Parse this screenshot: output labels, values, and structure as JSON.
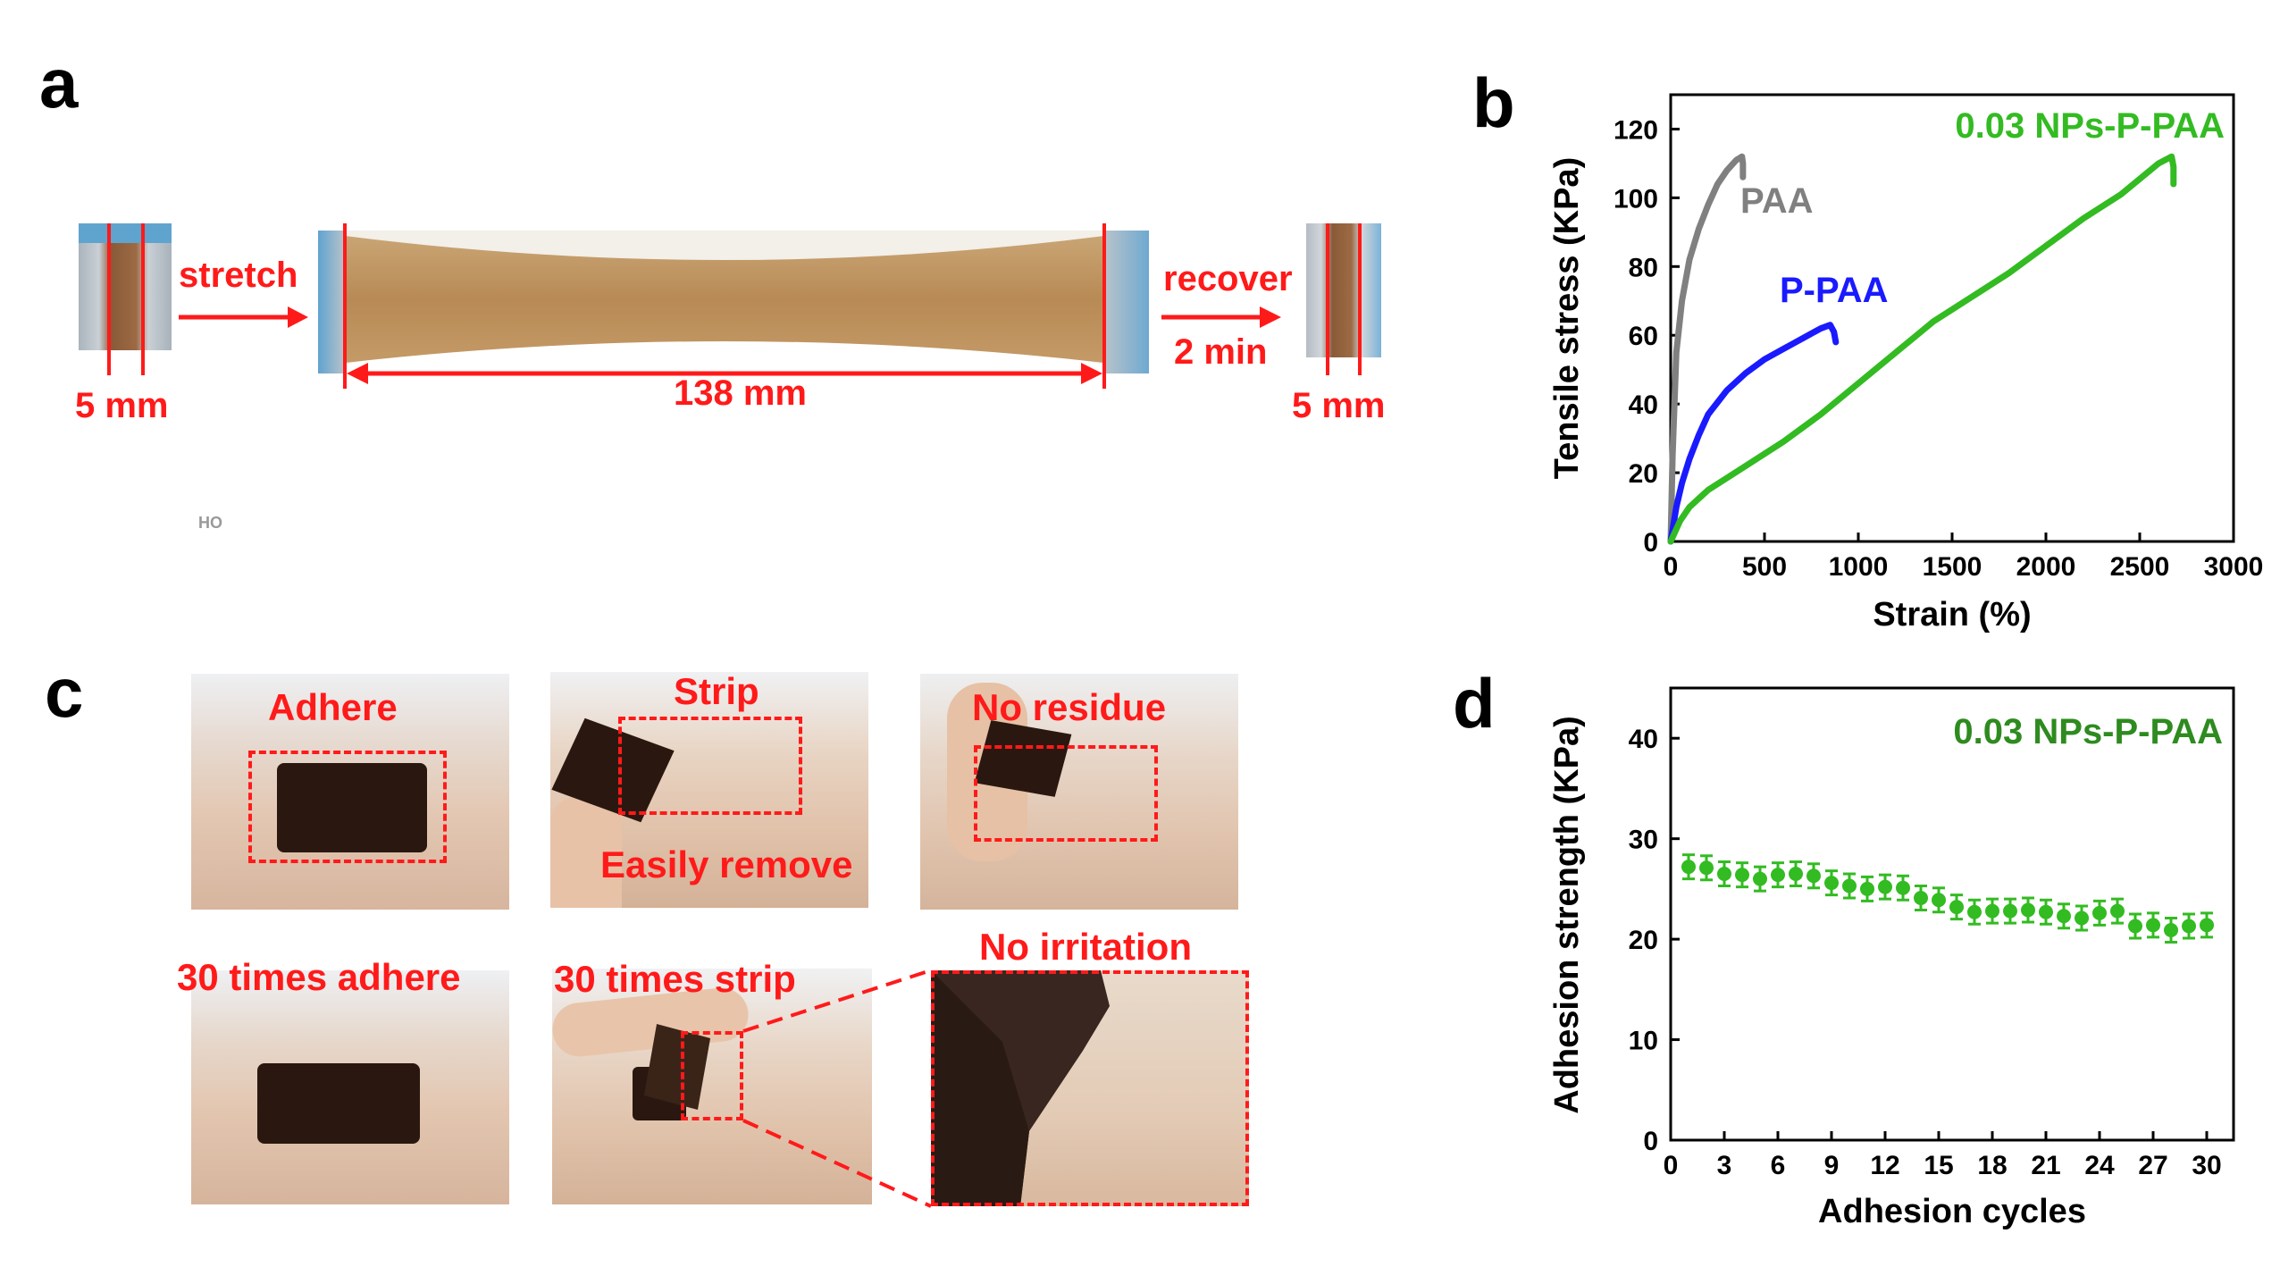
{
  "panels": {
    "a": "a",
    "b": "b",
    "c": "c",
    "d": "d"
  },
  "panel_a": {
    "stretch_label": "stretch",
    "recover_label": "recover",
    "time_label": "2 min",
    "left_width": "5 mm",
    "stretched_width": "138 mm",
    "right_width": "5 mm",
    "watermark": "HO"
  },
  "panel_c": {
    "adhere": "Adhere",
    "strip": "Strip",
    "easily_remove": "Easily remove",
    "no_residue": "No residue",
    "times_adhere": "30 times adhere",
    "times_strip": "30 times strip",
    "no_irritation": "No irritation"
  },
  "colors": {
    "red": "#ff1a1a",
    "gray": "#808080",
    "blue": "#1a1aff",
    "green": "#33bb22",
    "dark_green": "#2e8b1f"
  },
  "chart_data": [
    {
      "type": "line",
      "id": "b",
      "xlabel": "Strain (%)",
      "ylabel": "Tensile stress (KPa)",
      "xlim": [
        0,
        3000
      ],
      "ylim": [
        0,
        130
      ],
      "xticks": [
        0,
        500,
        1000,
        1500,
        2000,
        2500,
        3000
      ],
      "yticks": [
        0,
        20,
        40,
        60,
        80,
        100,
        120
      ],
      "series": [
        {
          "name": "PAA",
          "color": "#808080",
          "x": [
            0,
            10,
            30,
            60,
            100,
            150,
            200,
            250,
            300,
            350,
            380,
            385,
            385
          ],
          "y": [
            0,
            25,
            55,
            70,
            82,
            91,
            98,
            104,
            108,
            111,
            112,
            110,
            106
          ]
        },
        {
          "name": "P-PAA",
          "color": "#1a1aff",
          "x": [
            0,
            30,
            60,
            100,
            150,
            200,
            300,
            400,
            500,
            600,
            700,
            800,
            850,
            870,
            880
          ],
          "y": [
            0,
            10,
            17,
            24,
            31,
            37,
            44,
            49,
            53,
            56,
            59,
            62,
            63,
            61,
            58
          ]
        },
        {
          "name": "0.03 NPs-P-PAA",
          "color": "#33bb22",
          "x": [
            0,
            50,
            100,
            200,
            400,
            600,
            800,
            1000,
            1200,
            1400,
            1600,
            1800,
            2000,
            2200,
            2400,
            2600,
            2670,
            2680,
            2680
          ],
          "y": [
            0,
            6,
            10,
            15,
            22,
            29,
            37,
            46,
            55,
            64,
            71,
            78,
            86,
            94,
            101,
            110,
            112,
            109,
            104
          ]
        }
      ]
    },
    {
      "type": "scatter",
      "id": "d",
      "xlabel": "Adhesion cycles",
      "ylabel": "Adhesion strength (KPa)",
      "legend": "0.03 NPs-P-PAA",
      "xlim": [
        0,
        31.5
      ],
      "ylim": [
        0,
        45
      ],
      "xticks": [
        0,
        3,
        6,
        9,
        12,
        15,
        18,
        21,
        24,
        27,
        30
      ],
      "yticks": [
        0,
        10,
        20,
        30,
        40
      ],
      "x": [
        1,
        2,
        3,
        4,
        5,
        6,
        7,
        8,
        9,
        10,
        11,
        12,
        13,
        14,
        15,
        16,
        17,
        18,
        19,
        20,
        21,
        22,
        23,
        24,
        25,
        26,
        27,
        28,
        29,
        30
      ],
      "y": [
        27.2,
        27.1,
        26.5,
        26.4,
        26.0,
        26.4,
        26.5,
        26.3,
        25.6,
        25.3,
        25.0,
        25.2,
        25.1,
        24.1,
        23.9,
        23.2,
        22.7,
        22.8,
        22.8,
        22.9,
        22.7,
        22.3,
        22.1,
        22.6,
        22.8,
        21.3,
        21.4,
        20.9,
        21.3,
        21.4
      ],
      "error": 1.2
    }
  ]
}
